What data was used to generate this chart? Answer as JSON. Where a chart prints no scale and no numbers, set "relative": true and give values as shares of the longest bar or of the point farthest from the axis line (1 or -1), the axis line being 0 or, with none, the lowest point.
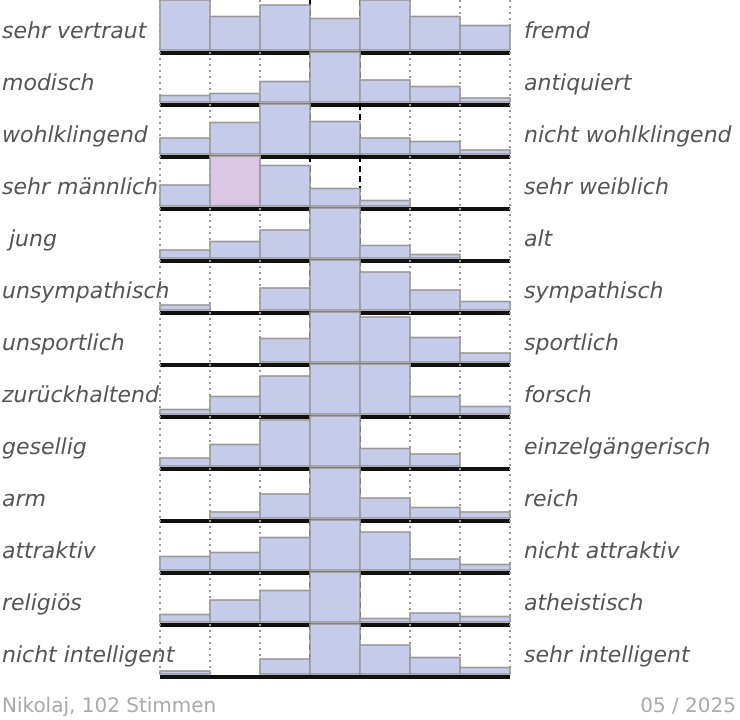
{
  "chart_data": [
    {
      "type": "bar",
      "categories": [
        null,
        null,
        null,
        null,
        null,
        null,
        null
      ],
      "values": [
        1,
        0.67,
        0.9,
        0.63,
        1,
        0.67,
        0.49
      ],
      "color": "#c5cbe9",
      "relative": true,
      "grid": "x",
      "annotations": [
        "sehr vertraut",
        "fremd"
      ]
    },
    {
      "type": "bar",
      "categories": [
        null,
        null,
        null,
        null,
        null,
        null,
        null
      ],
      "values": [
        0.13,
        0.17,
        0.41,
        1,
        0.44,
        0.31,
        0.08
      ],
      "color": "#c5cbe9",
      "relative": true,
      "grid": "x",
      "annotations": [
        "modisch",
        "antiquiert"
      ]
    },
    {
      "type": "bar",
      "categories": [
        null,
        null,
        null,
        null,
        null,
        null,
        null
      ],
      "values": [
        0.32,
        0.63,
        1,
        0.65,
        0.32,
        0.25,
        0.08
      ],
      "color": "#c5cbe9",
      "relative": true,
      "grid": "x",
      "annotations": [
        "wohlklingend",
        "nicht wohlklingend"
      ]
    },
    {
      "type": "bar",
      "categories": [
        null,
        null,
        null,
        null,
        null,
        null,
        null
      ],
      "values": [
        0.42,
        1,
        0.81,
        0.35,
        0.11,
        0,
        0
      ],
      "colors": [
        "#c5cbe9",
        "#dcc6e6",
        "#c5cbe9",
        "#c5cbe9",
        "#c5cbe9",
        "#c5cbe9",
        "#c5cbe9"
      ],
      "relative": true,
      "grid": "x",
      "annotations": [
        "sehr männlich",
        "sehr weiblich"
      ]
    },
    {
      "type": "bar",
      "categories": [
        null,
        null,
        null,
        null,
        null,
        null,
        null
      ],
      "values": [
        0.16,
        0.33,
        0.56,
        1,
        0.25,
        0.07,
        0
      ],
      "color": "#c5cbe9",
      "relative": true,
      "grid": "x",
      "annotations": [
        " jung",
        "alt"
      ]
    },
    {
      "type": "bar",
      "categories": [
        null,
        null,
        null,
        null,
        null,
        null,
        null
      ],
      "values": [
        0.1,
        0,
        0.44,
        1,
        0.76,
        0.4,
        0.17
      ],
      "color": "#c5cbe9",
      "relative": true,
      "grid": "x",
      "annotations": [
        "unsympathisch",
        "sympathisch"
      ]
    },
    {
      "type": "bar",
      "categories": [
        null,
        null,
        null,
        null,
        null,
        null,
        null
      ],
      "values": [
        0,
        0,
        0.47,
        1,
        0.9,
        0.49,
        0.18
      ],
      "color": "#c5cbe9",
      "relative": true,
      "grid": "x",
      "annotations": [
        "unsportlich",
        "sportlich"
      ]
    },
    {
      "type": "bar",
      "categories": [
        null,
        null,
        null,
        null,
        null,
        null,
        null
      ],
      "values": [
        0.09,
        0.35,
        0.76,
        1,
        1,
        0.35,
        0.15
      ],
      "color": "#c5cbe9",
      "relative": true,
      "grid": "x",
      "annotations": [
        "zurückhaltend",
        "forsch"
      ]
    },
    {
      "type": "bar",
      "categories": [
        null,
        null,
        null,
        null,
        null,
        null,
        null
      ],
      "values": [
        0.16,
        0.43,
        0.92,
        1,
        0.35,
        0.24,
        0
      ],
      "color": "#c5cbe9",
      "relative": true,
      "grid": "x",
      "annotations": [
        "gesellig",
        "einzelgängerisch"
      ]
    },
    {
      "type": "bar",
      "categories": [
        null,
        null,
        null,
        null,
        null,
        null,
        null
      ],
      "values": [
        0,
        0.12,
        0.48,
        1,
        0.4,
        0.21,
        0.12
      ],
      "color": "#c5cbe9",
      "relative": true,
      "grid": "x",
      "annotations": [
        "arm",
        "reich"
      ]
    },
    {
      "type": "bar",
      "categories": [
        null,
        null,
        null,
        null,
        null,
        null,
        null
      ],
      "values": [
        0.27,
        0.35,
        0.65,
        1,
        0.76,
        0.22,
        0.11
      ],
      "color": "#c5cbe9",
      "relative": true,
      "grid": "x",
      "annotations": [
        "attraktiv",
        "nicht attraktiv"
      ]
    },
    {
      "type": "bar",
      "categories": [
        null,
        null,
        null,
        null,
        null,
        null,
        null
      ],
      "values": [
        0.15,
        0.44,
        0.63,
        1,
        0.07,
        0.18,
        0.11
      ],
      "color": "#c5cbe9",
      "relative": true,
      "grid": "x",
      "annotations": [
        "religiös",
        "atheistisch"
      ]
    },
    {
      "type": "bar",
      "categories": [
        null,
        null,
        null,
        null,
        null,
        null,
        null
      ],
      "values": [
        0.06,
        0,
        0.3,
        1,
        0.58,
        0.33,
        0.13
      ],
      "color": "#c5cbe9",
      "relative": true,
      "grid": "x",
      "annotations": [
        "nicht intelligent",
        "sehr intelligent"
      ]
    },
    {
      "type": "other",
      "annotations": [
        "Nikolaj, 102 Stimmen",
        "05 / 2025"
      ]
    }
  ]
}
